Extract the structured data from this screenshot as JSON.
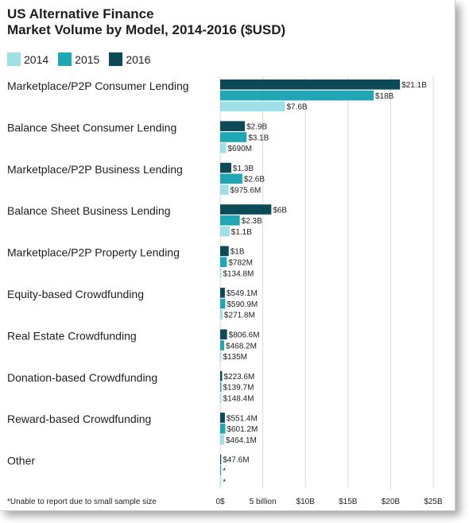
{
  "title_line1": "US Alternative Finance",
  "title_line2": "Market Volume by Model, 2014-2016 ($USD)",
  "footnote": "*Unable to report due to small sample size",
  "colors": {
    "2014": "#9de0e6",
    "2015": "#21a6b3",
    "2016": "#0c4a57"
  },
  "chart_data": {
    "type": "bar",
    "orientation": "horizontal",
    "title": "US Alternative Finance Market Volume by Model, 2014-2016 ($USD)",
    "xlim": [
      0,
      25
    ],
    "x_unit": "billion USD",
    "tick_labels": [
      "0$",
      "5 billion",
      "$10B",
      "$15B",
      "$20B",
      "$25B"
    ],
    "tick_values": [
      0,
      5,
      10,
      15,
      20,
      25
    ],
    "grid": true,
    "legend_position": "top-left",
    "categories": [
      "Marketplace/P2P Consumer Lending",
      "Balance Sheet Consumer Lending",
      "Marketplace/P2P Business Lending",
      "Balance Sheet Business Lending",
      "Marketplace/P2P Property Lending",
      "Equity-based Crowdfunding",
      "Real Estate Crowdfunding",
      "Donation-based Crowdfunding",
      "Reward-based Crowdfunding",
      "Other"
    ],
    "series": [
      {
        "name": "2016",
        "values": [
          21.1,
          2.9,
          1.3,
          6.0,
          1.0,
          0.5491,
          0.8066,
          0.2236,
          0.5514,
          0.0476
        ],
        "labels": [
          "$21.1B",
          "$2.9B",
          "$1.3B",
          "$6B",
          "$1B",
          "$549.1M",
          "$806.6M",
          "$223.6M",
          "$551.4M",
          "$47.6M"
        ]
      },
      {
        "name": "2015",
        "values": [
          18.0,
          3.1,
          2.6,
          2.3,
          0.782,
          0.5909,
          0.4682,
          0.1397,
          0.6012,
          0
        ],
        "labels": [
          "$18B",
          "$3.1B",
          "$2.6B",
          "$2.3B",
          "$782M",
          "$590.9M",
          "$468.2M",
          "$139.7M",
          "$601.2M",
          "*"
        ]
      },
      {
        "name": "2014",
        "values": [
          7.6,
          0.69,
          0.9756,
          1.1,
          0.1348,
          0.2718,
          0.135,
          0.1484,
          0.4641,
          0
        ],
        "labels": [
          "$7.6B",
          "$690M",
          "$975.6M",
          "$1.1B",
          "$134.8M",
          "$271.8M",
          "$135M",
          "$148.4M",
          "$464.1M",
          "*"
        ]
      }
    ]
  }
}
